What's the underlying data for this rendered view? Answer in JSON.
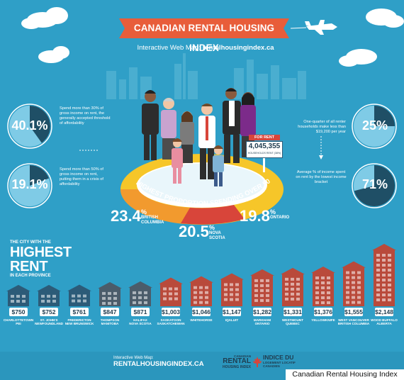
{
  "title": "CANADIAN RENTAL HOUSING INDEX",
  "subtitle_prefix": "Interactive Web Map:",
  "subtitle_url": "rentalhousingindex.ca",
  "stats_left": [
    {
      "value": "40.1%",
      "fraction": 0.401,
      "text": "Spend more than 30% of gross income on rent, the generally accepted threshold of affordability"
    },
    {
      "value": "19.1%",
      "fraction": 0.191,
      "text": "Spend more than 50% of gross income on rent, putting them in a crisis of affordability"
    }
  ],
  "stats_right": [
    {
      "value": "25%",
      "fraction": 0.25,
      "text": "One-quarter of all renter households make less than $19,200 per year"
    },
    {
      "value": "71%",
      "fraction": 0.71,
      "text": "Average % of income spent on rent by the lowest income bracket"
    }
  ],
  "sign": {
    "header": "FOR RENT",
    "number": "4,045,355",
    "label": "HOUSEHOLDS RENT (38%)"
  },
  "ring_text": "HIGHEST PROPORTION SPENDING OVER 50% ON RENT",
  "provinces": [
    {
      "pct": "23.4",
      "sign": "%",
      "name": "BRITISH COLUMBIA"
    },
    {
      "pct": "20.5",
      "sign": "%",
      "name": "NOVA SCOTIA"
    },
    {
      "pct": "19.8",
      "sign": "%",
      "name": "ONTARIO"
    }
  ],
  "highest_rent": {
    "line1": "THE CITY WITH THE",
    "line2": "HIGHEST RENT",
    "line3": "IN EACH PROVINCE"
  },
  "cities": [
    {
      "rent": "$750",
      "rent_value": 750,
      "city": "CHARLOTTETOWN",
      "prov": "PEI"
    },
    {
      "rent": "$752",
      "rent_value": 752,
      "city": "ST. JOHN'S",
      "prov": "NEWFOUNDLAND"
    },
    {
      "rent": "$761",
      "rent_value": 761,
      "city": "FREDERICTON",
      "prov": "NEW BRUNSWICK"
    },
    {
      "rent": "$847",
      "rent_value": 847,
      "city": "THOMPSON",
      "prov": "MANITOBA"
    },
    {
      "rent": "$871",
      "rent_value": 871,
      "city": "HALIFAX",
      "prov": "NOVA SCOTIA"
    },
    {
      "rent": "$1,003",
      "rent_value": 1003,
      "city": "SASKATOON",
      "prov": "SASKATCHEWAN"
    },
    {
      "rent": "$1,046",
      "rent_value": 1046,
      "city": "WHITEHORSE",
      "prov": ""
    },
    {
      "rent": "$1,147",
      "rent_value": 1147,
      "city": "IQALUIT",
      "prov": ""
    },
    {
      "rent": "$1,282",
      "rent_value": 1282,
      "city": "MARKHAM",
      "prov": "ONTARIO"
    },
    {
      "rent": "$1,331",
      "rent_value": 1331,
      "city": "WESTMOUNT",
      "prov": "QUEBEC"
    },
    {
      "rent": "$1,376",
      "rent_value": 1376,
      "city": "YELLOWKNIFE",
      "prov": ""
    },
    {
      "rent": "$1,555",
      "rent_value": 1555,
      "city": "WEST VANCOUVER",
      "prov": "BRITISH COLUMBIA"
    },
    {
      "rent": "$2,148",
      "rent_value": 2148,
      "city": "WOOD BUFFALO",
      "prov": "ALBERTA"
    }
  ],
  "footer": {
    "map_label": "Interactive Web Map:",
    "map_url": "RENTALHOUSINGINDEX.CA",
    "logo_en_1": "CANADIAN",
    "logo_en_2": "RENTAL",
    "logo_en_3": "HOUSING INDEX",
    "logo_fr_1": "INDICE DU",
    "logo_fr_2": "LOGEMENT LOCATIF",
    "logo_fr_3": "CANADIEN"
  },
  "caption": "Canadian Rental Housing Index",
  "colors": {
    "background": "#2f9fc7",
    "banner": "#e85d3a",
    "ring_orange": "#f29a2e",
    "ring_red": "#d8453a",
    "ring_yellow": "#f6c629",
    "house_dark": "#2c5b78",
    "house_red": "#b94a3b"
  }
}
